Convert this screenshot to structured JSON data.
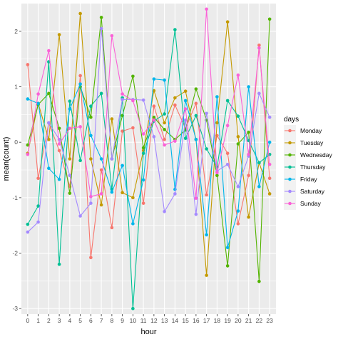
{
  "chart_data": {
    "type": "line",
    "xlabel": "hour",
    "ylabel": "mean(count)",
    "x": [
      0,
      1,
      2,
      3,
      4,
      5,
      6,
      7,
      8,
      9,
      10,
      11,
      12,
      13,
      14,
      15,
      16,
      17,
      18,
      19,
      20,
      21,
      22,
      23
    ],
    "x_tick_labels": [
      "0",
      "1",
      "2",
      "3",
      "4",
      "5",
      "6",
      "7",
      "8",
      "9",
      "10",
      "11",
      "12",
      "13",
      "14",
      "15",
      "16",
      "17",
      "18",
      "19",
      "20",
      "21",
      "22",
      "23"
    ],
    "xlim": [
      -0.6,
      23.6
    ],
    "ylim": [
      -3.1,
      2.5
    ],
    "y_ticks": [
      -3,
      -2,
      -1,
      0,
      1,
      2
    ],
    "y_tick_labels": [
      "-3",
      "-2",
      "-1",
      "0",
      "1",
      "2"
    ],
    "grid": true,
    "markers": true,
    "legend_title": "days",
    "legend_position": "right",
    "series": [
      {
        "name": "Monday",
        "color": "#F8766D",
        "values": [
          1.4,
          -0.65,
          0.35,
          -0.15,
          -0.8,
          1.2,
          -2.08,
          -0.5,
          -1.54,
          0.2,
          0.26,
          -1.1,
          0.65,
          0.05,
          0.67,
          0.25,
          0.7,
          -0.95,
          0.12,
          -0.2,
          -1.47,
          -0.6,
          1.75,
          -0.65
        ]
      },
      {
        "name": "Tuesday",
        "color": "#C49A00",
        "values": [
          -0.2,
          0.7,
          0.05,
          1.94,
          -0.3,
          2.32,
          -0.3,
          -1.13,
          0.42,
          -0.91,
          -1.0,
          -0.15,
          0.93,
          0.35,
          0.8,
          0.92,
          0.05,
          -2.4,
          0.35,
          2.17,
          0.1,
          -1.35,
          -0.37,
          -0.93
        ]
      },
      {
        "name": "Wednesday",
        "color": "#53B400",
        "values": [
          -0.05,
          0.68,
          0.88,
          0.25,
          -0.92,
          1.0,
          0.45,
          2.25,
          -0.3,
          0.48,
          1.19,
          -0.1,
          0.45,
          0.23,
          0.05,
          0.22,
          0.96,
          0.4,
          -0.6,
          -2.23,
          -0.03,
          0.18,
          -2.51,
          2.22
        ]
      },
      {
        "name": "Thursday",
        "color": "#00C094",
        "values": [
          -1.48,
          -1.15,
          1.45,
          -2.2,
          0.74,
          -0.33,
          0.65,
          0.88,
          -0.85,
          0.8,
          -3.0,
          -0.2,
          0.38,
          0.51,
          2.03,
          0.07,
          0.48,
          -0.12,
          -0.45,
          0.75,
          0.47,
          0.03,
          -0.37,
          -0.22
        ]
      },
      {
        "name": "Friday",
        "color": "#00B6EB",
        "values": [
          0.78,
          0.7,
          -0.47,
          -0.67,
          0.6,
          1.05,
          0.12,
          -0.3,
          -0.9,
          -0.42,
          -1.47,
          -0.68,
          1.14,
          1.12,
          -0.85,
          0.75,
          0.05,
          -1.67,
          0.82,
          -1.9,
          -1.24,
          1.0,
          -0.8,
          0.0
        ]
      },
      {
        "name": "Saturday",
        "color": "#A58AFF",
        "values": [
          -1.62,
          -1.44,
          0.35,
          0.05,
          -0.6,
          -1.33,
          -1.1,
          2.05,
          -0.3,
          0.77,
          0.77,
          0.76,
          0.1,
          -1.25,
          -0.93,
          0.4,
          -1.3,
          0.52,
          -0.52,
          -0.4,
          -0.8,
          -0.25,
          0.88,
          0.45
        ]
      },
      {
        "name": "Sunday",
        "color": "#FB61D7",
        "values": [
          -0.22,
          0.87,
          1.65,
          -0.03,
          0.25,
          0.28,
          -0.98,
          -0.93,
          1.92,
          0.87,
          0.75,
          0.15,
          0.4,
          -0.05,
          0.02,
          0.6,
          -1.01,
          2.4,
          -0.55,
          0.3,
          1.21,
          -0.22,
          1.7,
          -0.4
        ]
      }
    ]
  }
}
